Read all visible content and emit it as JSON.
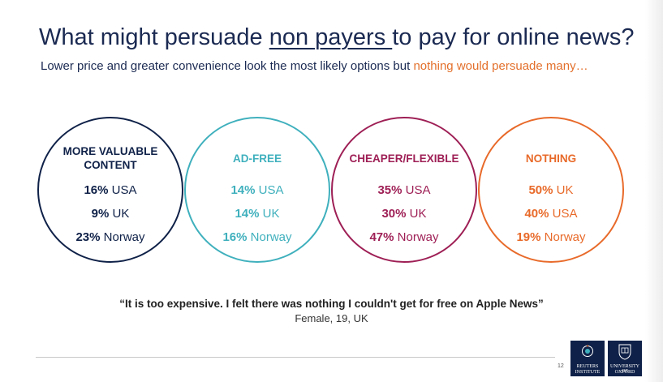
{
  "title": {
    "before": "What might persuade ",
    "underlined": "non payers ",
    "after": "to pay for online news?"
  },
  "subtitle": {
    "text": "Lower price and greater convenience look the most likely options but ",
    "highlight": "nothing would persuade many…"
  },
  "colors": {
    "navy": "#0f2148",
    "teal": "#3fb0bd",
    "magenta": "#9e1f55",
    "orange": "#e86a2a",
    "highlight": "#e3702c"
  },
  "circles": [
    {
      "category": "MORE VALUABLE CONTENT",
      "rows": [
        {
          "pct": "16%",
          "region": "USA"
        },
        {
          "pct": "9%",
          "region": "UK"
        },
        {
          "pct": "23%",
          "region": "Norway"
        }
      ]
    },
    {
      "category": "AD-FREE",
      "rows": [
        {
          "pct": "14%",
          "region": "USA"
        },
        {
          "pct": "14%",
          "region": "UK"
        },
        {
          "pct": "16%",
          "region": "Norway"
        }
      ]
    },
    {
      "category": "CHEAPER/FLEXIBLE",
      "rows": [
        {
          "pct": "35%",
          "region": "USA"
        },
        {
          "pct": "30%",
          "region": "UK"
        },
        {
          "pct": "47%",
          "region": "Norway"
        }
      ]
    },
    {
      "category": "NOTHING",
      "rows": [
        {
          "pct": "50%",
          "region": "UK"
        },
        {
          "pct": "40%",
          "region": "USA"
        },
        {
          "pct": "19%",
          "region": "Norway"
        }
      ]
    }
  ],
  "quote": "“It is too expensive. I felt there was nothing I couldn't get for free on Apple News”",
  "attribution": "Female, 19, UK",
  "page_number": "12",
  "logos": {
    "reuters": {
      "line1": "REUTERS",
      "line2": "INSTITUTE"
    },
    "oxford": {
      "line1": "UNIVERSITY OF",
      "line2": "OXFORD"
    }
  }
}
